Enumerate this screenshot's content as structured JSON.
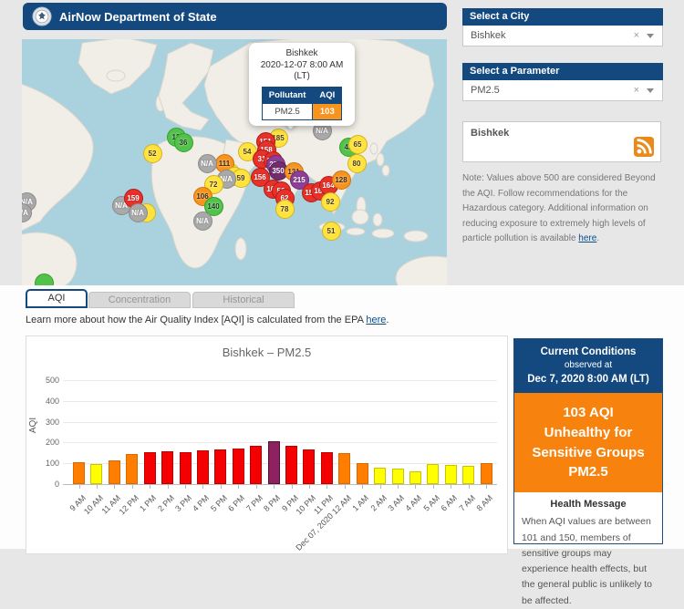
{
  "header": {
    "title": "AirNow Department of State"
  },
  "colors": {
    "navy": "#14497f",
    "orange_accent": "#f7941d",
    "aqi_green": "#00e400",
    "aqi_yellow": "#ffff00",
    "aqi_orange": "#ff7e00",
    "aqi_red": "#f40000",
    "aqi_purple": "#8e2160",
    "na_gray": "#a9a9a9"
  },
  "map": {
    "popup": {
      "city": "Bishkek",
      "datetime": "2020-12-07 8:00 AM",
      "tz": "(LT)",
      "pollutant_header": "Pollutant",
      "aqi_header": "AQI",
      "pollutant": "PM2.5",
      "aqi": "103"
    },
    "markers": [
      {
        "label": "",
        "color": "green",
        "x": 24,
        "y": 267
      },
      {
        "label": "N/A",
        "color": "gray",
        "x": 5,
        "y": 178
      },
      {
        "label": "N/A",
        "color": "gray",
        "x": 0,
        "y": 190
      },
      {
        "label": "13",
        "color": "green",
        "x": 169,
        "y": 107
      },
      {
        "label": "36",
        "color": "green",
        "x": 177,
        "y": 113
      },
      {
        "label": "52",
        "color": "yellow",
        "x": 143,
        "y": 125
      },
      {
        "label": "N/A",
        "color": "gray",
        "x": 109,
        "y": 182
      },
      {
        "label": "159",
        "color": "red",
        "x": 122,
        "y": 174
      },
      {
        "label": "6",
        "color": "yellow",
        "x": 136,
        "y": 190
      },
      {
        "label": "N/A",
        "color": "gray",
        "x": 127,
        "y": 190
      },
      {
        "label": "86",
        "color": "yellow",
        "x": 228,
        "y": 146
      },
      {
        "label": "111",
        "color": "orange",
        "x": 222,
        "y": 136
      },
      {
        "label": "N/A",
        "color": "gray",
        "x": 203,
        "y": 136
      },
      {
        "label": "21",
        "color": "yellow",
        "x": 233,
        "y": 150
      },
      {
        "label": "59",
        "color": "yellow",
        "x": 240,
        "y": 152
      },
      {
        "label": "N/A",
        "color": "gray",
        "x": 224,
        "y": 153
      },
      {
        "label": "72",
        "color": "yellow",
        "x": 210,
        "y": 159
      },
      {
        "label": "106",
        "color": "orange",
        "x": 198,
        "y": 172
      },
      {
        "label": "140",
        "color": "green",
        "x": 210,
        "y": 183
      },
      {
        "label": "N/A",
        "color": "gray",
        "x": 198,
        "y": 199
      },
      {
        "label": "54",
        "color": "yellow",
        "x": 247,
        "y": 123
      },
      {
        "label": "N/A",
        "color": "gray",
        "x": 329,
        "y": 100
      },
      {
        "label": "185",
        "color": "yellow",
        "x": 281,
        "y": 108
      },
      {
        "label": "151",
        "color": "red",
        "x": 267,
        "y": 112
      },
      {
        "label": "158",
        "color": "red",
        "x": 268,
        "y": 121
      },
      {
        "label": "31",
        "color": "red",
        "x": 263,
        "y": 131
      },
      {
        "label": "155",
        "color": "red",
        "x": 275,
        "y": 133
      },
      {
        "label": "250",
        "color": "purple",
        "x": 278,
        "y": 137
      },
      {
        "label": "350",
        "color": "maroon",
        "x": 281,
        "y": 144
      },
      {
        "label": "131",
        "color": "orange",
        "x": 298,
        "y": 145
      },
      {
        "label": "215",
        "color": "purple",
        "x": 304,
        "y": 154
      },
      {
        "label": "156",
        "color": "red",
        "x": 261,
        "y": 151
      },
      {
        "label": "163",
        "color": "red",
        "x": 275,
        "y": 164
      },
      {
        "label": "56",
        "color": "red",
        "x": 284,
        "y": 166
      },
      {
        "label": "62",
        "color": "red",
        "x": 288,
        "y": 174
      },
      {
        "label": "78",
        "color": "yellow",
        "x": 288,
        "y": 186
      },
      {
        "label": "157",
        "color": "red",
        "x": 317,
        "y": 168
      },
      {
        "label": "168",
        "color": "red",
        "x": 327,
        "y": 166
      },
      {
        "label": "164",
        "color": "red",
        "x": 336,
        "y": 160
      },
      {
        "label": "128",
        "color": "orange",
        "x": 350,
        "y": 154
      },
      {
        "label": "92",
        "color": "yellow",
        "x": 338,
        "y": 178
      },
      {
        "label": "51",
        "color": "yellow",
        "x": 339,
        "y": 210
      },
      {
        "label": "42",
        "color": "green",
        "x": 358,
        "y": 118
      },
      {
        "label": "65",
        "color": "yellow",
        "x": 368,
        "y": 115
      },
      {
        "label": "80",
        "color": "yellow",
        "x": 367,
        "y": 136
      }
    ]
  },
  "sidebar": {
    "city_panel": {
      "title": "Select a City",
      "value": "Bishkek",
      "clear_icon": "×"
    },
    "param_panel": {
      "title": "Select a Parameter",
      "value": "PM2.5",
      "clear_icon": "×"
    },
    "rss_box": {
      "text": "Bishkek"
    },
    "note": {
      "before": "Note: Values above 500 are considered Beyond the AQI. Follow recommendations for the Hazardous category. Additional information on reducing exposure to extremely high levels of particle pollution is available ",
      "link": "here",
      "after": "."
    }
  },
  "tabs": [
    {
      "label": "AQI",
      "active": true
    },
    {
      "label": "Concentration",
      "active": false
    },
    {
      "label": "Historical",
      "active": false
    }
  ],
  "learn": {
    "before": "Learn more about how the Air Quality Index [AQI] is calculated from the EPA ",
    "link": "here",
    "after": "."
  },
  "chart_data": {
    "type": "bar",
    "title": "Bishkek – PM2.5",
    "xlabel": "",
    "ylabel": "AQI",
    "ylim": [
      0,
      500
    ],
    "yticks": [
      0,
      100,
      200,
      300,
      400,
      500
    ],
    "grid": true,
    "legend": false,
    "categories": [
      "9 AM",
      "10 AM",
      "11 AM",
      "12 PM",
      "1 PM",
      "2 PM",
      "3 PM",
      "4 PM",
      "5 PM",
      "6 PM",
      "7 PM",
      "8 PM",
      "9 PM",
      "10 PM",
      "11 PM",
      "Dec 07, 2020 12 AM",
      "1 AM",
      "2 AM",
      "3 AM",
      "4 AM",
      "5 AM",
      "6 AM",
      "7 AM",
      "8 AM"
    ],
    "values": [
      105,
      95,
      115,
      145,
      155,
      158,
      152,
      162,
      167,
      170,
      183,
      207,
      183,
      167,
      155,
      147,
      101,
      80,
      73,
      63,
      95,
      90,
      87,
      103
    ]
  },
  "conditions": {
    "title": "Current Conditions",
    "observed": "observed at",
    "datetime": "Dec 7, 2020 8:00 AM (LT)",
    "aqi_line1": "103 AQI",
    "aqi_line2": "Unhealthy for Sensitive Groups",
    "aqi_line3": "PM2.5",
    "health_title": "Health Message",
    "health_body": "When AQI values are between 101 and 150, members of sensitive groups may experience health effects, but the general public is unlikely to be affected."
  }
}
